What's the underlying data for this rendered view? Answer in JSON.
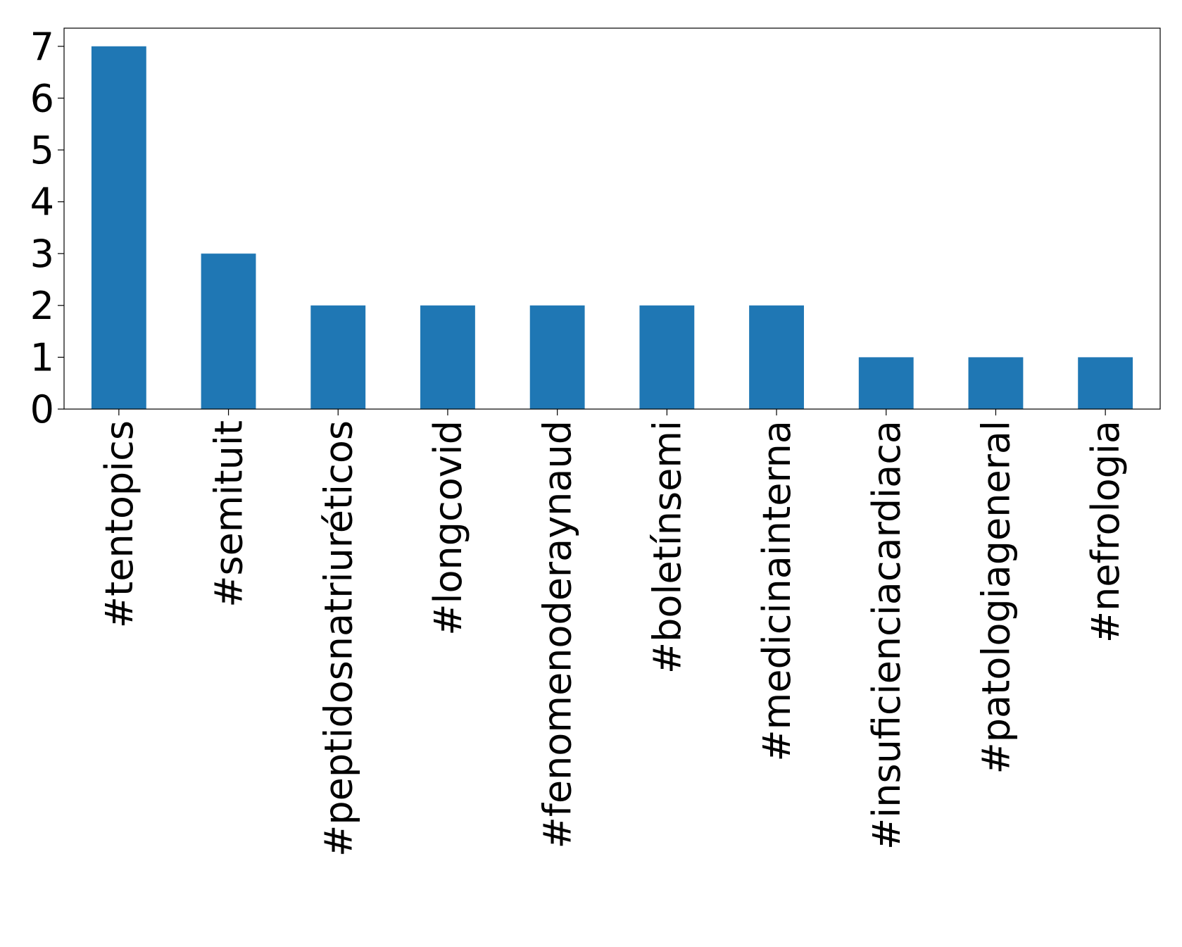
{
  "chart_data": {
    "type": "bar",
    "categories": [
      "#tentopics",
      "#semituit",
      "#peptidosnatriuréticos",
      "#longcovid",
      "#fenomenoderaynaud",
      "#boletínsemi",
      "#medicinainterna",
      "#insuficienciacardiaca",
      "#patologiageneral",
      "#nefrologia"
    ],
    "values": [
      7,
      3,
      2,
      2,
      2,
      2,
      2,
      1,
      1,
      1
    ],
    "color": "#1f77b4",
    "ylim": [
      0,
      7.35
    ],
    "yticks": [
      0,
      1,
      2,
      3,
      4,
      5,
      6,
      7
    ],
    "grid": false
  }
}
